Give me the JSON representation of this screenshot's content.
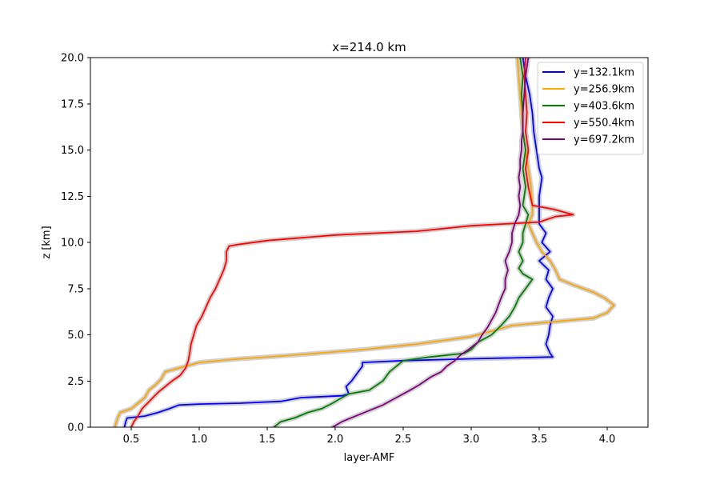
{
  "chart_data": {
    "type": "line",
    "title": "x=214.0 km",
    "xlabel": "layer-AMF",
    "ylabel": "z [km]",
    "xlim": [
      0.2,
      4.3
    ],
    "ylim": [
      0,
      20
    ],
    "xticks": [
      0.5,
      1.0,
      1.5,
      2.0,
      2.5,
      3.0,
      3.5,
      4.0
    ],
    "xtick_labels": [
      "0.5",
      "1.0",
      "1.5",
      "2.0",
      "2.5",
      "3.0",
      "3.5",
      "4.0"
    ],
    "yticks": [
      0,
      2.5,
      5,
      7.5,
      10,
      12.5,
      15,
      17.5,
      20
    ],
    "ytick_labels": [
      "0.0",
      "2.5",
      "5.0",
      "7.5",
      "10.0",
      "12.5",
      "15.0",
      "17.5",
      "20.0"
    ],
    "legend_position": "top-right",
    "grid": false,
    "uncertainty_band_color": "#c8c8c8",
    "series": [
      {
        "name": "y=132.1km",
        "color": "#0000ff",
        "points": [
          [
            0.45,
            0.0
          ],
          [
            0.46,
            0.3
          ],
          [
            0.47,
            0.5
          ],
          [
            0.6,
            0.6
          ],
          [
            0.7,
            0.8
          ],
          [
            0.78,
            1.0
          ],
          [
            0.85,
            1.2
          ],
          [
            1.0,
            1.25
          ],
          [
            1.3,
            1.3
          ],
          [
            1.6,
            1.4
          ],
          [
            1.75,
            1.6
          ],
          [
            2.05,
            1.7
          ],
          [
            2.1,
            1.8
          ],
          [
            2.08,
            2.2
          ],
          [
            2.12,
            2.5
          ],
          [
            2.15,
            2.8
          ],
          [
            2.18,
            3.1
          ],
          [
            2.2,
            3.3
          ],
          [
            2.2,
            3.5
          ],
          [
            2.5,
            3.6
          ],
          [
            3.0,
            3.7
          ],
          [
            3.6,
            3.8
          ],
          [
            3.58,
            4.0
          ],
          [
            3.55,
            4.5
          ],
          [
            3.57,
            5.0
          ],
          [
            3.58,
            5.5
          ],
          [
            3.6,
            6.0
          ],
          [
            3.55,
            6.5
          ],
          [
            3.57,
            7.0
          ],
          [
            3.6,
            7.5
          ],
          [
            3.55,
            8.0
          ],
          [
            3.57,
            8.5
          ],
          [
            3.5,
            9.0
          ],
          [
            3.58,
            9.5
          ],
          [
            3.52,
            10.0
          ],
          [
            3.55,
            10.5
          ],
          [
            3.5,
            11.0
          ],
          [
            3.5,
            11.5
          ],
          [
            3.5,
            12.5
          ],
          [
            3.52,
            13.5
          ],
          [
            3.5,
            14.0
          ],
          [
            3.48,
            15.0
          ],
          [
            3.46,
            16.0
          ],
          [
            3.45,
            17.0
          ],
          [
            3.43,
            18.0
          ],
          [
            3.4,
            19.0
          ],
          [
            3.38,
            20.0
          ]
        ]
      },
      {
        "name": "y=256.9km",
        "color": "#ffa500",
        "points": [
          [
            0.38,
            0.0
          ],
          [
            0.4,
            0.5
          ],
          [
            0.42,
            0.8
          ],
          [
            0.5,
            1.0
          ],
          [
            0.55,
            1.3
          ],
          [
            0.6,
            1.6
          ],
          [
            0.63,
            2.0
          ],
          [
            0.68,
            2.3
          ],
          [
            0.72,
            2.6
          ],
          [
            0.75,
            3.0
          ],
          [
            0.85,
            3.2
          ],
          [
            1.0,
            3.5
          ],
          [
            1.3,
            3.7
          ],
          [
            1.7,
            3.9
          ],
          [
            2.2,
            4.2
          ],
          [
            2.6,
            4.5
          ],
          [
            3.0,
            4.9
          ],
          [
            3.15,
            5.2
          ],
          [
            3.3,
            5.5
          ],
          [
            3.6,
            5.7
          ],
          [
            3.9,
            5.9
          ],
          [
            4.0,
            6.2
          ],
          [
            4.05,
            6.6
          ],
          [
            3.98,
            7.0
          ],
          [
            3.9,
            7.3
          ],
          [
            3.75,
            7.7
          ],
          [
            3.65,
            8.0
          ],
          [
            3.62,
            8.5
          ],
          [
            3.58,
            9.0
          ],
          [
            3.52,
            9.5
          ],
          [
            3.48,
            10.0
          ],
          [
            3.45,
            10.5
          ],
          [
            3.42,
            11.0
          ],
          [
            3.45,
            11.5
          ],
          [
            3.45,
            12.0
          ],
          [
            3.44,
            13.0
          ],
          [
            3.42,
            14.0
          ],
          [
            3.4,
            15.0
          ],
          [
            3.38,
            16.0
          ],
          [
            3.37,
            17.0
          ],
          [
            3.36,
            18.0
          ],
          [
            3.35,
            19.0
          ],
          [
            3.34,
            20.0
          ]
        ]
      },
      {
        "name": "y=403.6km",
        "color": "#008000",
        "points": [
          [
            1.55,
            0.0
          ],
          [
            1.6,
            0.3
          ],
          [
            1.7,
            0.5
          ],
          [
            1.8,
            0.8
          ],
          [
            1.9,
            1.0
          ],
          [
            1.98,
            1.3
          ],
          [
            2.05,
            1.6
          ],
          [
            2.1,
            1.8
          ],
          [
            2.25,
            2.0
          ],
          [
            2.35,
            2.5
          ],
          [
            2.4,
            3.0
          ],
          [
            2.45,
            3.3
          ],
          [
            2.5,
            3.6
          ],
          [
            2.7,
            3.8
          ],
          [
            2.95,
            4.0
          ],
          [
            3.0,
            4.2
          ],
          [
            3.05,
            4.6
          ],
          [
            3.15,
            5.0
          ],
          [
            3.22,
            5.5
          ],
          [
            3.28,
            6.0
          ],
          [
            3.32,
            6.5
          ],
          [
            3.35,
            7.0
          ],
          [
            3.4,
            7.5
          ],
          [
            3.45,
            8.0
          ],
          [
            3.38,
            8.3
          ],
          [
            3.35,
            8.6
          ],
          [
            3.38,
            9.0
          ],
          [
            3.35,
            9.5
          ],
          [
            3.38,
            10.0
          ],
          [
            3.38,
            10.5
          ],
          [
            3.4,
            11.0
          ],
          [
            3.42,
            11.5
          ],
          [
            3.38,
            12.0
          ],
          [
            3.4,
            13.0
          ],
          [
            3.38,
            14.0
          ],
          [
            3.4,
            15.0
          ],
          [
            3.38,
            16.0
          ],
          [
            3.38,
            17.0
          ],
          [
            3.37,
            18.0
          ],
          [
            3.38,
            19.0
          ],
          [
            3.36,
            20.0
          ]
        ]
      },
      {
        "name": "y=550.4km",
        "color": "#ff0000",
        "points": [
          [
            0.5,
            0.0
          ],
          [
            0.52,
            0.3
          ],
          [
            0.55,
            0.6
          ],
          [
            0.58,
            1.0
          ],
          [
            0.62,
            1.3
          ],
          [
            0.66,
            1.6
          ],
          [
            0.7,
            1.9
          ],
          [
            0.75,
            2.2
          ],
          [
            0.8,
            2.5
          ],
          [
            0.86,
            2.8
          ],
          [
            0.9,
            3.2
          ],
          [
            0.92,
            3.6
          ],
          [
            0.93,
            4.0
          ],
          [
            0.94,
            4.5
          ],
          [
            0.96,
            5.0
          ],
          [
            0.98,
            5.5
          ],
          [
            1.02,
            6.0
          ],
          [
            1.05,
            6.5
          ],
          [
            1.08,
            7.0
          ],
          [
            1.12,
            7.5
          ],
          [
            1.15,
            8.0
          ],
          [
            1.18,
            8.5
          ],
          [
            1.2,
            9.0
          ],
          [
            1.2,
            9.5
          ],
          [
            1.22,
            9.8
          ],
          [
            1.3,
            9.9
          ],
          [
            1.5,
            10.1
          ],
          [
            2.0,
            10.4
          ],
          [
            2.6,
            10.6
          ],
          [
            3.0,
            10.9
          ],
          [
            3.5,
            11.1
          ],
          [
            3.62,
            11.4
          ],
          [
            3.75,
            11.5
          ],
          [
            3.6,
            11.8
          ],
          [
            3.45,
            12.0
          ],
          [
            3.42,
            13.0
          ],
          [
            3.4,
            14.0
          ],
          [
            3.42,
            15.0
          ],
          [
            3.4,
            16.0
          ],
          [
            3.41,
            17.0
          ],
          [
            3.4,
            18.0
          ],
          [
            3.39,
            19.0
          ],
          [
            3.4,
            20.0
          ]
        ]
      },
      {
        "name": "y=697.2km",
        "color": "#800080",
        "points": [
          [
            1.98,
            0.0
          ],
          [
            2.05,
            0.3
          ],
          [
            2.15,
            0.6
          ],
          [
            2.25,
            0.9
          ],
          [
            2.35,
            1.2
          ],
          [
            2.45,
            1.6
          ],
          [
            2.55,
            2.0
          ],
          [
            2.62,
            2.3
          ],
          [
            2.7,
            2.7
          ],
          [
            2.78,
            3.0
          ],
          [
            2.82,
            3.3
          ],
          [
            2.88,
            3.6
          ],
          [
            2.92,
            3.9
          ],
          [
            2.98,
            4.2
          ],
          [
            3.05,
            4.6
          ],
          [
            3.08,
            5.0
          ],
          [
            3.12,
            5.4
          ],
          [
            3.15,
            5.8
          ],
          [
            3.18,
            6.2
          ],
          [
            3.2,
            6.6
          ],
          [
            3.22,
            7.0
          ],
          [
            3.25,
            7.5
          ],
          [
            3.25,
            8.0
          ],
          [
            3.27,
            8.5
          ],
          [
            3.25,
            9.0
          ],
          [
            3.28,
            9.5
          ],
          [
            3.3,
            10.0
          ],
          [
            3.3,
            10.5
          ],
          [
            3.32,
            11.0
          ],
          [
            3.35,
            11.5
          ],
          [
            3.36,
            12.0
          ],
          [
            3.35,
            12.5
          ],
          [
            3.36,
            13.0
          ],
          [
            3.35,
            13.5
          ],
          [
            3.36,
            14.0
          ],
          [
            3.36,
            14.5
          ],
          [
            3.37,
            15.0
          ],
          [
            3.37,
            15.5
          ],
          [
            3.38,
            16.0
          ],
          [
            3.38,
            17.0
          ],
          [
            3.39,
            18.0
          ],
          [
            3.4,
            19.0
          ],
          [
            3.42,
            20.0
          ]
        ]
      }
    ]
  }
}
